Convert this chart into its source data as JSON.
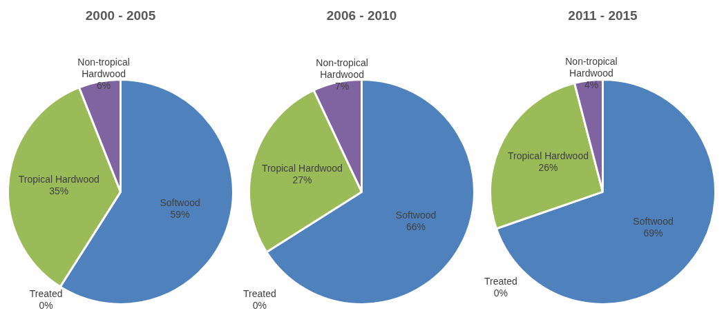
{
  "chart_data": [
    {
      "type": "pie",
      "title": "2000 - 2005",
      "categories": [
        "Softwood",
        "Treated",
        "Tropical Hardwood",
        "Non-tropical Hardwood"
      ],
      "values": [
        59,
        0,
        35,
        6
      ],
      "colors": [
        "#4f81bd",
        "#c0504d",
        "#9bbb59",
        "#8064a2"
      ],
      "value_labels": [
        "59%",
        "0%",
        "35%",
        "6%"
      ],
      "legend": false
    },
    {
      "type": "pie",
      "title": "2006 - 2010",
      "categories": [
        "Softwood",
        "Treated",
        "Tropical Hardwood",
        "Non-tropical Hardwood"
      ],
      "values": [
        66,
        0,
        27,
        7
      ],
      "colors": [
        "#4f81bd",
        "#c0504d",
        "#9bbb59",
        "#8064a2"
      ],
      "value_labels": [
        "66%",
        "0%",
        "27%",
        "7%"
      ],
      "legend": false
    },
    {
      "type": "pie",
      "title": "2011 - 2015",
      "categories": [
        "Softwood",
        "Treated",
        "Tropical Hardwood",
        "Non-tropical Hardwood"
      ],
      "values": [
        69,
        0,
        26,
        4
      ],
      "colors": [
        "#4f81bd",
        "#c0504d",
        "#9bbb59",
        "#8064a2"
      ],
      "value_labels": [
        "69%",
        "0%",
        "26%",
        "4%"
      ],
      "legend": false
    }
  ]
}
